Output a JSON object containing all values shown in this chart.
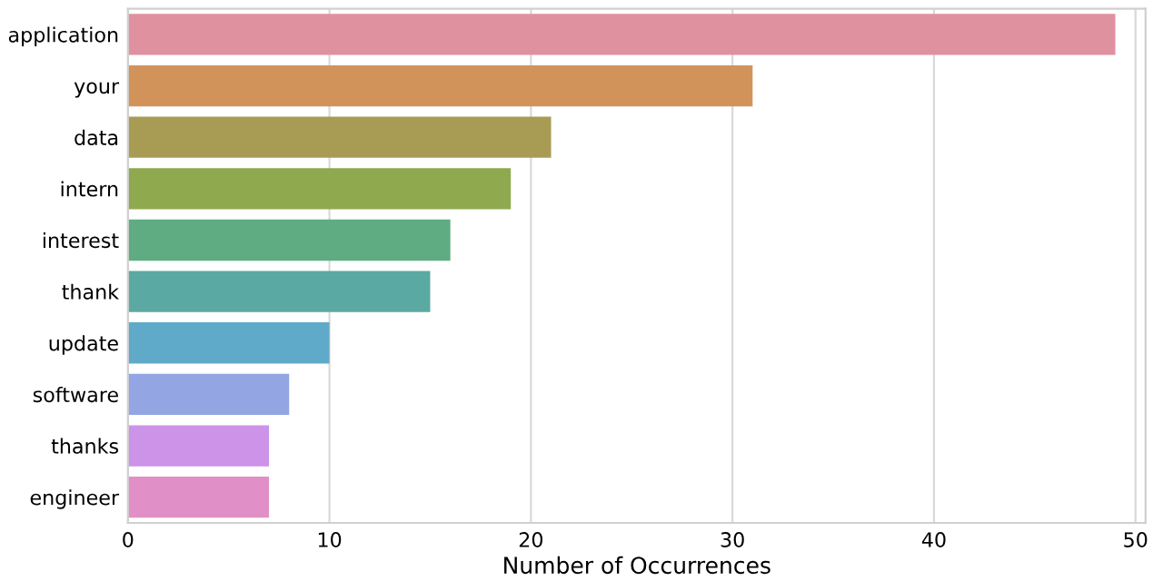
{
  "chart_data": {
    "type": "bar",
    "orientation": "horizontal",
    "xlabel": "Number of Occurrences",
    "categories": [
      "application",
      "your",
      "data",
      "intern",
      "interest",
      "thank",
      "update",
      "software",
      "thanks",
      "engineer"
    ],
    "values": [
      49,
      31,
      21,
      19,
      16,
      15,
      10,
      8,
      7,
      7
    ],
    "colors": [
      "#e0919f",
      "#d2935b",
      "#a89c55",
      "#8fa94e",
      "#5fac82",
      "#5ba9a3",
      "#5faac8",
      "#93a5e3",
      "#cc93e8",
      "#e090c6"
    ],
    "xlim": [
      0,
      50.5
    ],
    "xticks": [
      0,
      10,
      20,
      30,
      40,
      50
    ],
    "grid": "x"
  }
}
